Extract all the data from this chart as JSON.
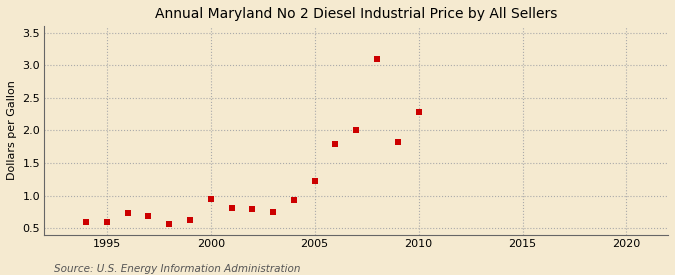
{
  "years": [
    1994,
    1995,
    1996,
    1997,
    1998,
    1999,
    2000,
    2001,
    2002,
    2003,
    2004,
    2005,
    2006,
    2007,
    2008,
    2009,
    2010
  ],
  "values": [
    0.59,
    0.59,
    0.73,
    0.69,
    0.57,
    0.63,
    0.95,
    0.81,
    0.79,
    0.75,
    0.93,
    1.22,
    1.79,
    2.01,
    3.1,
    1.83,
    2.28
  ],
  "title": "Annual Maryland No 2 Diesel Industrial Price by All Sellers",
  "ylabel": "Dollars per Gallon",
  "source": "Source: U.S. Energy Information Administration",
  "background_color": "#f5ead0",
  "marker_color": "#cc0000",
  "marker": "s",
  "marker_size": 4,
  "xlim": [
    1992,
    2022
  ],
  "ylim": [
    0.4,
    3.6
  ],
  "yticks": [
    0.5,
    1.0,
    1.5,
    2.0,
    2.5,
    3.0,
    3.5
  ],
  "xticks": [
    1995,
    2000,
    2005,
    2010,
    2015,
    2020
  ],
  "grid_color": "#aaaaaa",
  "title_fontsize": 10,
  "ylabel_fontsize": 8,
  "tick_labelsize": 8,
  "source_fontsize": 7.5
}
